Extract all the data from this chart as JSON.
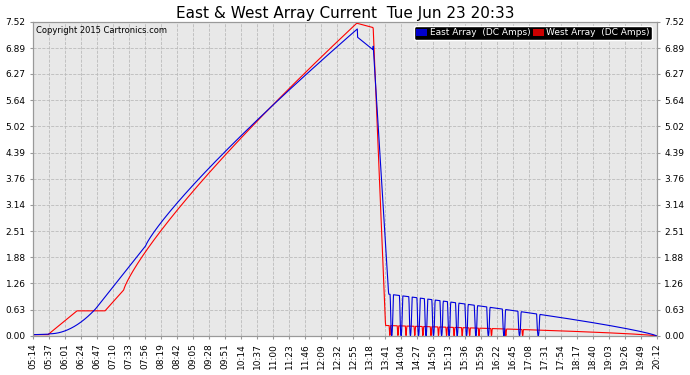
{
  "title": "East & West Array Current  Tue Jun 23 20:33",
  "copyright": "Copyright 2015 Cartronics.com",
  "legend_east": "East Array  (DC Amps)",
  "legend_west": "West Array  (DC Amps)",
  "east_color": "#0000dd",
  "west_color": "#ff0000",
  "legend_east_bg": "#0000cc",
  "legend_west_bg": "#cc0000",
  "ylim": [
    0.0,
    7.52
  ],
  "yticks": [
    0.0,
    0.63,
    1.26,
    1.88,
    2.51,
    3.14,
    3.76,
    4.39,
    5.02,
    5.64,
    6.27,
    6.89,
    7.52
  ],
  "background_color": "#ffffff",
  "plot_bg_color": "#e8e8e8",
  "grid_color": "#bbbbbb",
  "title_fontsize": 11,
  "tick_fontsize": 6.5,
  "figsize": [
    6.9,
    3.75
  ],
  "dpi": 100,
  "x_tick_labels": [
    "05:14",
    "05:37",
    "06:01",
    "06:24",
    "06:47",
    "07:10",
    "07:33",
    "07:56",
    "08:19",
    "08:42",
    "09:05",
    "09:28",
    "09:51",
    "10:14",
    "10:37",
    "11:00",
    "11:23",
    "11:46",
    "12:09",
    "12:32",
    "12:55",
    "13:18",
    "13:41",
    "14:04",
    "14:27",
    "14:50",
    "15:13",
    "15:36",
    "15:59",
    "16:22",
    "16:45",
    "17:08",
    "17:31",
    "17:54",
    "18:17",
    "18:40",
    "19:03",
    "19:26",
    "19:49",
    "20:12"
  ]
}
